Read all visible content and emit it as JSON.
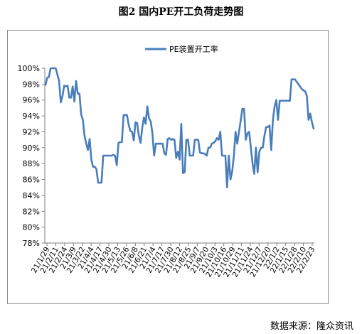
{
  "figure_title": "图2 国内PE开工负荷走势图",
  "source_note": "数据来源：隆众资讯",
  "chart_data": {
    "type": "line",
    "title": "",
    "xlabel": "",
    "ylabel": "",
    "ylim": [
      78,
      100
    ],
    "yticks": [
      78,
      80,
      82,
      84,
      86,
      88,
      90,
      92,
      94,
      96,
      98,
      100
    ],
    "ytick_format": "percent",
    "grid": false,
    "legend": "top-center",
    "line_color": "#4a7ebb",
    "xtick_labels": [
      "21/1/29",
      "21/2/11",
      "21/2/24",
      "21/3/9",
      "21/3/22",
      "21/4/4",
      "21/4/17",
      "21/4/30",
      "21/5/13",
      "21/5/26",
      "21/6/8",
      "21/6/21",
      "21/7/4",
      "21/7/17",
      "21/7/30",
      "21/8/12",
      "21/8/25",
      "21/9/7",
      "21/9/20",
      "21/10/3",
      "21/10/16",
      "21/10/29",
      "21/11/11",
      "21/11/24",
      "21/12/7",
      "21/12/20",
      "22/1/2",
      "22/1/15",
      "22/1/28",
      "22/2/10",
      "22/2/23"
    ],
    "series": [
      {
        "name": "PE装置开工率",
        "values": [
          97.9,
          98.8,
          98.9,
          100,
          100,
          100,
          100,
          99.2,
          98.4,
          95.7,
          96.5,
          97.8,
          97.7,
          97.8,
          96.3,
          96.3,
          97.7,
          95.8,
          98.4,
          96.8,
          96.8,
          94.2,
          93.5,
          91.5,
          90.5,
          89.7,
          91.1,
          88.5,
          87.6,
          87.6,
          87.3,
          85.6,
          85.6,
          85.6,
          89.0,
          89.0,
          89.0,
          89.0,
          89.0,
          89.0,
          89.1,
          89.0,
          87.8,
          90.6,
          90.7,
          90.7,
          94.1,
          94.1,
          94.1,
          92.9,
          92.1,
          92.0,
          90.9,
          93.2,
          93.1,
          91.5,
          90.6,
          92.5,
          93.8,
          93.0,
          95.2,
          93.7,
          93.3,
          91.8,
          89.0,
          90.5,
          90.5,
          90.5,
          90.5,
          90.5,
          89.3,
          89.1,
          91.1,
          91.2,
          91.0,
          91.1,
          91.0,
          88.7,
          89.5,
          88.5,
          93.0,
          86.8,
          86.9,
          91.0,
          91.0,
          89.0,
          89.0,
          89.0,
          91.0,
          91.0,
          91.0,
          89.4,
          89.3,
          89.3,
          89.2,
          89.0,
          90.0,
          90.0,
          90.5,
          90.6,
          90.8,
          91.2,
          91.0,
          92.0,
          89.0,
          89.0,
          89.0,
          85.0,
          89.0,
          86.0,
          87.0,
          89.0,
          92.0,
          90.5,
          92.0,
          93.4,
          94.9,
          94.9,
          91.0,
          91.8,
          92.0,
          90.0,
          88.0,
          86.7,
          90.0,
          86.9,
          89.5,
          90.0,
          90.0,
          91.5,
          92.6,
          92.6,
          92.8,
          89.7,
          93.5,
          95.2,
          96.0,
          93.5,
          95.9,
          95.9,
          95.9,
          95.9,
          95.9,
          95.9,
          95.9,
          98.6,
          98.6,
          98.6,
          98.3,
          98.0,
          97.7,
          97.4,
          97.2,
          97.1,
          96.5,
          93.5,
          94.3,
          93.2,
          92.4
        ]
      }
    ]
  }
}
